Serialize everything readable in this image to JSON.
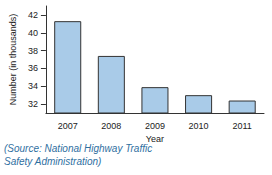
{
  "chart_data": {
    "type": "bar",
    "categories": [
      "2007",
      "2008",
      "2009",
      "2010",
      "2011"
    ],
    "values": [
      41.3,
      37.4,
      33.9,
      33.0,
      32.4
    ],
    "color": "#a9cbe8",
    "x_label": "Year",
    "y_label": "Number (in thousands)",
    "ylim": [
      31,
      43
    ],
    "yticks": [
      32,
      34,
      36,
      38,
      40,
      42
    ],
    "grid": false,
    "annotations": [
      "(Source: National Highway Traffic Safety Administration)"
    ]
  }
}
